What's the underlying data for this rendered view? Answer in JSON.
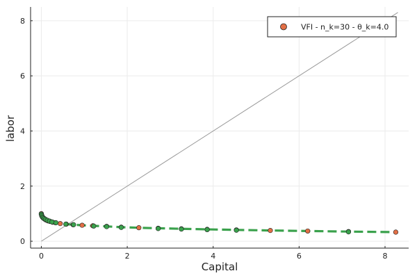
{
  "chart_data": {
    "type": "scatter",
    "title": "",
    "xlabel": "Capital",
    "ylabel": "labor",
    "xlim": [
      -0.25,
      8.55
    ],
    "ylim": [
      -0.25,
      8.5
    ],
    "xticks": [
      0,
      2,
      4,
      6,
      8
    ],
    "yticks": [
      0,
      2,
      4,
      6,
      8
    ],
    "grid": true,
    "legend_position": "top-right",
    "series": [
      {
        "name": "VFI - n_k=30 - θ_k=4.0",
        "kind": "markers",
        "color": "#e26f46",
        "x": [
          0.0,
          0.005,
          0.012,
          0.022,
          0.036,
          0.055,
          0.08,
          0.11,
          0.15,
          0.2,
          0.26,
          0.33,
          0.44,
          0.58,
          0.74,
          0.95,
          1.2,
          1.52,
          1.86,
          2.27,
          2.72,
          3.26,
          3.86,
          4.54,
          5.33,
          6.2,
          7.15,
          8.25
        ],
        "y": [
          1.0,
          0.96,
          0.92,
          0.89,
          0.86,
          0.83,
          0.8,
          0.77,
          0.74,
          0.72,
          0.69,
          0.67,
          0.64,
          0.62,
          0.6,
          0.58,
          0.56,
          0.54,
          0.51,
          0.49,
          0.47,
          0.45,
          0.43,
          0.41,
          0.39,
          0.37,
          0.35,
          0.33
        ]
      },
      {
        "name": "",
        "kind": "dashed-line",
        "color": "#3aa14c",
        "x": [
          0.0,
          0.005,
          0.012,
          0.022,
          0.036,
          0.055,
          0.08,
          0.11,
          0.15,
          0.2,
          0.26,
          0.33,
          0.44,
          0.58,
          0.74,
          0.95,
          1.2,
          1.52,
          1.86,
          2.27,
          2.72,
          3.26,
          3.86,
          4.54,
          5.33,
          6.2,
          7.15,
          8.25
        ],
        "y": [
          1.0,
          0.96,
          0.92,
          0.89,
          0.86,
          0.83,
          0.8,
          0.77,
          0.74,
          0.72,
          0.69,
          0.67,
          0.64,
          0.62,
          0.6,
          0.58,
          0.56,
          0.54,
          0.51,
          0.49,
          0.47,
          0.45,
          0.43,
          0.41,
          0.39,
          0.37,
          0.35,
          0.33
        ]
      },
      {
        "name": "",
        "kind": "markers",
        "color": "#3aa14c",
        "x": [
          0.0,
          0.01,
          0.025,
          0.045,
          0.07,
          0.1,
          0.14,
          0.19,
          0.25,
          0.34,
          0.57,
          0.75,
          1.22,
          1.52,
          1.86,
          2.72,
          3.26,
          3.86,
          4.54,
          7.15
        ],
        "y": [
          0.98,
          0.93,
          0.88,
          0.85,
          0.82,
          0.79,
          0.76,
          0.73,
          0.7,
          0.67,
          0.62,
          0.6,
          0.55,
          0.53,
          0.5,
          0.46,
          0.44,
          0.42,
          0.4,
          0.34
        ]
      },
      {
        "name": "",
        "kind": "line",
        "color": "#999999",
        "x": [
          0,
          8.3
        ],
        "y": [
          0,
          8.3
        ]
      }
    ]
  }
}
